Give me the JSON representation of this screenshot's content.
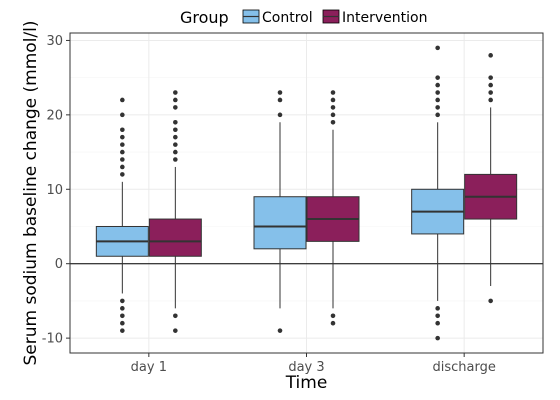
{
  "chart_data": {
    "type": "box",
    "xlabel": "Time",
    "ylabel": "Serum sodium baseline change (mmol/l)",
    "ylim": [
      -12,
      31
    ],
    "yticks": [
      -10,
      0,
      10,
      20,
      30
    ],
    "categories": [
      "day 1",
      "day 3",
      "discharge"
    ],
    "reference_line_y": 0,
    "grid": true,
    "legend": {
      "title": "Group",
      "position": "top"
    },
    "series": [
      {
        "name": "Control",
        "color": "#85c0ea",
        "boxes": [
          {
            "category": "day 1",
            "whisker_low": -4,
            "q1": 1,
            "median": 3,
            "q3": 5,
            "whisker_high": 11,
            "outliers": [
              -9,
              -8,
              -7,
              -6,
              -5,
              12,
              13,
              14,
              15,
              16,
              17,
              18,
              20,
              22
            ]
          },
          {
            "category": "day 3",
            "whisker_low": -6,
            "q1": 2,
            "median": 5,
            "q3": 9,
            "whisker_high": 19,
            "outliers": [
              -9,
              20,
              22,
              23
            ]
          },
          {
            "category": "discharge",
            "whisker_low": -5,
            "q1": 4,
            "median": 7,
            "q3": 10,
            "whisker_high": 19,
            "outliers": [
              -10,
              -8,
              -7,
              -6,
              20,
              21,
              22,
              23,
              24,
              25,
              29
            ]
          }
        ]
      },
      {
        "name": "Intervention",
        "color": "#8b1f5b",
        "boxes": [
          {
            "category": "day 1",
            "whisker_low": -6,
            "q1": 1,
            "median": 3,
            "q3": 6,
            "whisker_high": 13,
            "outliers": [
              -9,
              -7,
              14,
              15,
              16,
              17,
              18,
              19,
              21,
              22,
              23
            ]
          },
          {
            "category": "day 3",
            "whisker_low": -6,
            "q1": 3,
            "median": 6,
            "q3": 9,
            "whisker_high": 18,
            "outliers": [
              -8,
              -7,
              19,
              20,
              21,
              22,
              23
            ]
          },
          {
            "category": "discharge",
            "whisker_low": -3,
            "q1": 6,
            "median": 9,
            "q3": 12,
            "whisker_high": 21,
            "outliers": [
              -5,
              22,
              23,
              24,
              25,
              28
            ]
          }
        ]
      }
    ]
  }
}
